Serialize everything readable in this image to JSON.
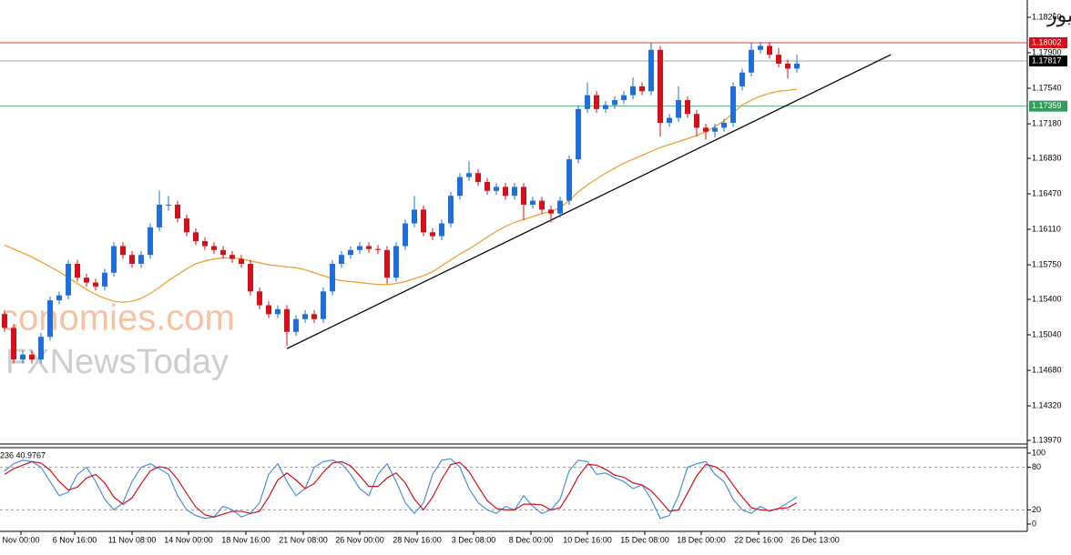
{
  "chart_data": {
    "type": "candlestick",
    "title": "السعودية نيوز",
    "watermarks": [
      "conomies.com",
      "FXNewsToday"
    ],
    "indicator_label": "236 40.9767",
    "xlim": [
      -0.5,
      112.3
    ],
    "xticks": [
      {
        "value": 1.8,
        "label": "Nov 00:00"
      },
      {
        "value": 7.7,
        "label": "6 Nov 16:00"
      },
      {
        "value": 14,
        "label": "11 Nov 08:00"
      },
      {
        "value": 20.2,
        "label": "14 Nov 00:00"
      },
      {
        "value": 26.5,
        "label": "18 Nov 16:00"
      },
      {
        "value": 32.8,
        "label": "21 Nov 08:00"
      },
      {
        "value": 39,
        "label": "26 Nov 00:00"
      },
      {
        "value": 45.3,
        "label": "28 Nov 16:00"
      },
      {
        "value": 51.5,
        "label": "3 Dec 08:00"
      },
      {
        "value": 57.8,
        "label": "8 Dec 00:00"
      },
      {
        "value": 64,
        "label": "10 Dec 16:00"
      },
      {
        "value": 70.3,
        "label": "15 Dec 08:00"
      },
      {
        "value": 76.5,
        "label": "18 Dec 00:00"
      },
      {
        "value": 82.8,
        "label": "22 Dec 16:00"
      },
      {
        "value": 89,
        "label": "26 Dec 13:00"
      }
    ],
    "ylim": [
      1.1397,
      1.1826
    ],
    "yticks": [
      {
        "value": 1.1826,
        "label": "1.18260"
      },
      {
        "value": 1.179,
        "label": "1.17900"
      },
      {
        "value": 1.1754,
        "label": "1.17540"
      },
      {
        "value": 1.1718,
        "label": "1.17180"
      },
      {
        "value": 1.1683,
        "label": "1.16830"
      },
      {
        "value": 1.1647,
        "label": "1.16470"
      },
      {
        "value": 1.1611,
        "label": "1.16110"
      },
      {
        "value": 1.1575,
        "label": "1.15750"
      },
      {
        "value": 1.154,
        "label": "1.15400"
      },
      {
        "value": 1.1504,
        "label": "1.15040"
      },
      {
        "value": 1.1468,
        "label": "1.14680"
      },
      {
        "value": 1.1432,
        "label": "1.14320"
      },
      {
        "value": 1.1397,
        "label": "1.13970"
      }
    ],
    "up_color": "#1f6fd6",
    "down_color": "#d4101a",
    "open": [
      1.1525,
      1.1511,
      1.1479,
      1.1484,
      1.1479,
      1.1502,
      1.1539,
      1.1544,
      1.1576,
      1.1562,
      1.1557,
      1.1553,
      1.1567,
      1.1594,
      1.1585,
      1.1576,
      1.1585,
      1.1613,
      1.1636,
      1.1636,
      1.1622,
      1.1608,
      1.1599,
      1.1594,
      1.159,
      1.1585,
      1.1581,
      1.1576,
      1.1548,
      1.1534,
      1.1525,
      1.153,
      1.1507,
      1.152,
      1.1525,
      1.152,
      1.1548,
      1.1576,
      1.1585,
      1.159,
      1.1594,
      1.1591,
      1.159,
      1.1562,
      1.1594,
      1.1617,
      1.1631,
      1.1608,
      1.1604,
      1.1617,
      1.1645,
      1.1664,
      1.1668,
      1.1659,
      1.165,
      1.1654,
      1.1645,
      1.1654,
      1.1636,
      1.164,
      1.1631,
      1.1627,
      1.164,
      1.1682,
      1.1733,
      1.1747,
      1.1733,
      1.1737,
      1.1742,
      1.1747,
      1.1756,
      1.1751,
      1.1793,
      1.1719,
      1.1724,
      1.1742,
      1.1728,
      1.1714,
      1.171,
      1.1714,
      1.1719,
      1.1756,
      1.177,
      1.1793,
      1.1797,
      1.1788,
      1.1779,
      1.1774
    ],
    "high": [
      1.1529,
      1.1515,
      1.1488,
      1.1488,
      1.1506,
      1.1543,
      1.1548,
      1.158,
      1.158,
      1.1566,
      1.1561,
      1.1571,
      1.1598,
      1.1598,
      1.1589,
      1.1589,
      1.1617,
      1.165,
      1.1645,
      1.164,
      1.1626,
      1.1612,
      1.1603,
      1.1598,
      1.1594,
      1.1589,
      1.1585,
      1.158,
      1.1552,
      1.1538,
      1.1534,
      1.1534,
      1.1524,
      1.1529,
      1.1529,
      1.1552,
      1.158,
      1.1589,
      1.1594,
      1.1598,
      1.1598,
      1.1595,
      1.1594,
      1.1598,
      1.1621,
      1.1645,
      1.1635,
      1.1612,
      1.1621,
      1.1649,
      1.1668,
      1.168,
      1.1672,
      1.1663,
      1.1658,
      1.1658,
      1.1658,
      1.1658,
      1.1644,
      1.1644,
      1.1635,
      1.1644,
      1.1686,
      1.1737,
      1.176,
      1.1751,
      1.1741,
      1.1746,
      1.1751,
      1.1765,
      1.176,
      1.18,
      1.1797,
      1.1728,
      1.1756,
      1.1746,
      1.1732,
      1.1718,
      1.1718,
      1.1723,
      1.176,
      1.1774,
      1.18,
      1.1801,
      1.1801,
      1.1795,
      1.1783,
      1.1788
    ],
    "low": [
      1.1507,
      1.1475,
      1.1475,
      1.1475,
      1.1475,
      1.1498,
      1.1535,
      1.154,
      1.1558,
      1.1553,
      1.1549,
      1.1549,
      1.1563,
      1.1581,
      1.1572,
      1.1572,
      1.1581,
      1.1609,
      1.163,
      1.1618,
      1.1604,
      1.1595,
      1.159,
      1.1586,
      1.1581,
      1.1577,
      1.1572,
      1.1544,
      1.153,
      1.1521,
      1.1521,
      1.1493,
      1.1503,
      1.1516,
      1.1516,
      1.1516,
      1.1544,
      1.1572,
      1.1581,
      1.1586,
      1.1587,
      1.1586,
      1.1556,
      1.1558,
      1.159,
      1.1613,
      1.1604,
      1.16,
      1.16,
      1.1613,
      1.1641,
      1.166,
      1.1655,
      1.1646,
      1.1646,
      1.1641,
      1.1641,
      1.162,
      1.1632,
      1.1627,
      1.1618,
      1.1623,
      1.1636,
      1.1678,
      1.1729,
      1.1729,
      1.1729,
      1.1733,
      1.1738,
      1.1743,
      1.1747,
      1.1747,
      1.1705,
      1.1715,
      1.172,
      1.1724,
      1.1705,
      1.1702,
      1.1704,
      1.171,
      1.1715,
      1.1752,
      1.1766,
      1.1789,
      1.1784,
      1.1775,
      1.1764,
      1.177
    ],
    "close": [
      1.1511,
      1.1479,
      1.1484,
      1.1479,
      1.1502,
      1.1539,
      1.1544,
      1.1576,
      1.1562,
      1.1557,
      1.1553,
      1.1567,
      1.1594,
      1.1585,
      1.1576,
      1.1585,
      1.1613,
      1.1636,
      1.1636,
      1.1622,
      1.1608,
      1.1599,
      1.1594,
      1.159,
      1.1585,
      1.1581,
      1.1576,
      1.1548,
      1.1534,
      1.1525,
      1.153,
      1.1507,
      1.152,
      1.1525,
      1.152,
      1.1548,
      1.1576,
      1.1585,
      1.159,
      1.1594,
      1.1591,
      1.159,
      1.1562,
      1.1594,
      1.1617,
      1.1631,
      1.1608,
      1.1604,
      1.1617,
      1.1645,
      1.1664,
      1.1668,
      1.1659,
      1.165,
      1.1654,
      1.1645,
      1.1654,
      1.1636,
      1.164,
      1.1631,
      1.1627,
      1.164,
      1.1682,
      1.1733,
      1.1747,
      1.1733,
      1.1737,
      1.1742,
      1.1747,
      1.1756,
      1.1751,
      1.1793,
      1.1719,
      1.1724,
      1.1742,
      1.1728,
      1.1714,
      1.171,
      1.1714,
      1.1719,
      1.1756,
      1.177,
      1.1793,
      1.1797,
      1.1788,
      1.1779,
      1.1774,
      1.1779
    ],
    "ma": {
      "color": "#f0a030",
      "values": [
        1.1595,
        1.1591,
        1.1587,
        1.1583,
        1.1578,
        1.1573,
        1.1568,
        1.1562,
        1.1556,
        1.155,
        1.1545,
        1.1541,
        1.1538,
        1.1537,
        1.1538,
        1.1541,
        1.1546,
        1.1552,
        1.1559,
        1.1565,
        1.1571,
        1.1576,
        1.1579,
        1.1581,
        1.1582,
        1.1582,
        1.1581,
        1.1579,
        1.1577,
        1.1575,
        1.1574,
        1.1573,
        1.1572,
        1.157,
        1.1567,
        1.1564,
        1.1561,
        1.1559,
        1.1558,
        1.1557,
        1.1556,
        1.1555,
        1.1555,
        1.1556,
        1.1558,
        1.1561,
        1.1564,
        1.1568,
        1.1574,
        1.158,
        1.1586,
        1.1591,
        1.1597,
        1.1603,
        1.1609,
        1.1614,
        1.1618,
        1.1621,
        1.1624,
        1.1627,
        1.1629,
        1.1633,
        1.164,
        1.1649,
        1.1656,
        1.1662,
        1.1668,
        1.1673,
        1.1678,
        1.1682,
        1.1686,
        1.169,
        1.1694,
        1.1697,
        1.17,
        1.1703,
        1.1706,
        1.171,
        1.1715,
        1.1721,
        1.1729,
        1.1737,
        1.1742,
        1.1746,
        1.1749,
        1.1751,
        1.1752,
        1.1753
      ]
    },
    "levels": [
      {
        "value": 1.18002,
        "color": "#d4101a"
      },
      {
        "value": 1.17817,
        "color": "#000000"
      },
      {
        "value": 1.17359,
        "color": "#2ea05a"
      }
    ],
    "trendline": {
      "x": [
        31,
        97.3
      ],
      "y": [
        1.149,
        1.1788
      ],
      "color": "#000000"
    },
    "oscillator": {
      "ylim": [
        0,
        100
      ],
      "yticks": [
        100,
        80,
        20,
        0
      ],
      "levels": [
        80,
        20
      ],
      "series": [
        {
          "color": "#4a8fe0",
          "values": [
            75,
            85,
            90,
            88,
            80,
            60,
            40,
            45,
            70,
            80,
            60,
            35,
            20,
            30,
            60,
            80,
            85,
            78,
            70,
            40,
            20,
            12,
            8,
            10,
            25,
            20,
            10,
            15,
            30,
            70,
            85,
            60,
            40,
            50,
            80,
            88,
            90,
            85,
            70,
            50,
            40,
            70,
            85,
            60,
            30,
            15,
            30,
            70,
            90,
            92,
            80,
            50,
            30,
            20,
            15,
            25,
            20,
            40,
            25,
            15,
            20,
            35,
            75,
            90,
            88,
            70,
            72,
            65,
            60,
            50,
            55,
            35,
            8,
            12,
            40,
            80,
            85,
            88,
            70,
            60,
            35,
            20,
            15,
            25,
            18,
            22,
            30,
            38
          ]
        },
        {
          "color": "#d4101a",
          "values": [
            70,
            78,
            83,
            88,
            86,
            76,
            60,
            48,
            52,
            65,
            70,
            58,
            38,
            28,
            37,
            57,
            75,
            81,
            78,
            63,
            43,
            24,
            13,
            10,
            14,
            18,
            18,
            15,
            18,
            38,
            62,
            72,
            62,
            50,
            57,
            73,
            86,
            88,
            82,
            68,
            53,
            53,
            65,
            72,
            58,
            35,
            20,
            38,
            63,
            84,
            87,
            74,
            53,
            33,
            22,
            20,
            20,
            28,
            28,
            27,
            20,
            23,
            43,
            67,
            84,
            83,
            77,
            69,
            66,
            58,
            55,
            47,
            33,
            18,
            20,
            44,
            68,
            84,
            81,
            73,
            55,
            38,
            23,
            20,
            19,
            22,
            23,
            30
          ]
        }
      ]
    }
  }
}
